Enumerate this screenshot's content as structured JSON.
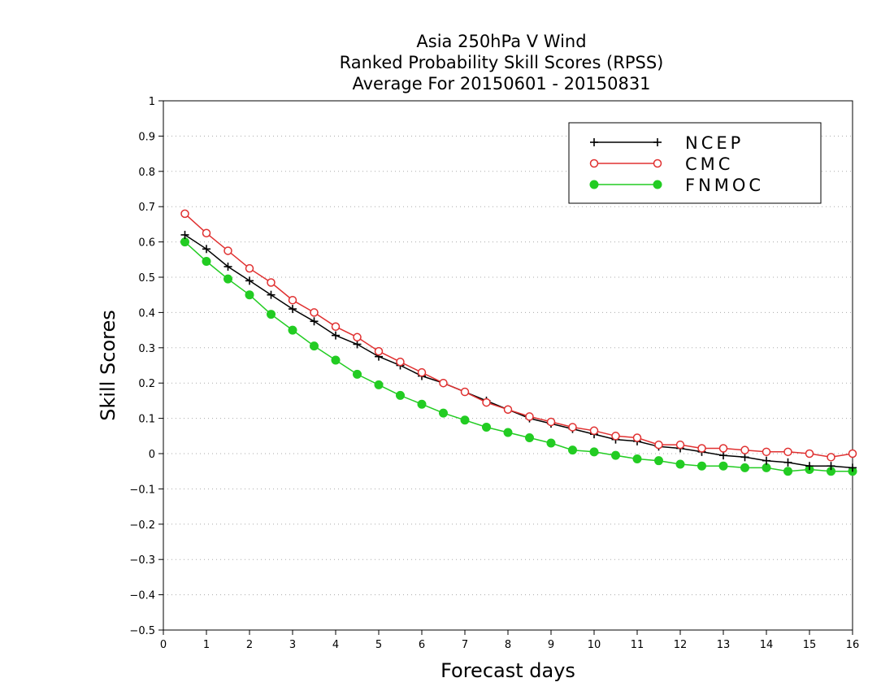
{
  "chart_data": {
    "type": "line",
    "title_lines": [
      "Asia 250hPa V Wind",
      "Ranked Probability Skill Scores (RPSS)",
      "Average For 20150601 - 20150831"
    ],
    "xlabel": "Forecast days",
    "ylabel": "Skill Scores",
    "xlim": [
      0,
      16
    ],
    "ylim": [
      -0.5,
      1
    ],
    "xticks": [
      "0",
      "1",
      "2",
      "3",
      "4",
      "5",
      "6",
      "7",
      "8",
      "9",
      "10",
      "11",
      "12",
      "13",
      "14",
      "15",
      "16"
    ],
    "yticks": [
      "−0.5",
      "−0.4",
      "−0.3",
      "−0.2",
      "−0.1",
      "0",
      "0.1",
      "0.2",
      "0.3",
      "0.4",
      "0.5",
      "0.6",
      "0.7",
      "0.8",
      "0.9",
      "1"
    ],
    "grid": true,
    "legend_position": "top-right",
    "x": [
      0.5,
      1,
      1.5,
      2,
      2.5,
      3,
      3.5,
      4,
      4.5,
      5,
      5.5,
      6,
      6.5,
      7,
      7.5,
      8,
      8.5,
      9,
      9.5,
      10,
      10.5,
      11,
      11.5,
      12,
      12.5,
      13,
      13.5,
      14,
      14.5,
      15,
      15.5,
      16
    ],
    "series": [
      {
        "name": "NCEP",
        "color": "#000000",
        "marker": "plus",
        "values": [
          0.62,
          0.58,
          0.53,
          0.49,
          0.45,
          0.41,
          0.375,
          0.335,
          0.31,
          0.275,
          0.25,
          0.22,
          0.2,
          0.175,
          0.15,
          0.125,
          0.1,
          0.085,
          0.07,
          0.055,
          0.04,
          0.035,
          0.02,
          0.015,
          0.005,
          -0.005,
          -0.01,
          -0.02,
          -0.025,
          -0.035,
          -0.035,
          -0.04
        ]
      },
      {
        "name": "CMC",
        "color": "#e03030",
        "marker": "open-circle",
        "values": [
          0.68,
          0.625,
          0.575,
          0.525,
          0.485,
          0.435,
          0.4,
          0.36,
          0.33,
          0.29,
          0.26,
          0.23,
          0.2,
          0.175,
          0.145,
          0.125,
          0.105,
          0.09,
          0.075,
          0.065,
          0.05,
          0.045,
          0.025,
          0.025,
          0.015,
          0.015,
          0.01,
          0.005,
          0.005,
          0,
          -0.01,
          0
        ]
      },
      {
        "name": "FNMOC",
        "color": "#22cc22",
        "marker": "filled-circle",
        "values": [
          0.6,
          0.545,
          0.495,
          0.45,
          0.395,
          0.35,
          0.305,
          0.265,
          0.225,
          0.195,
          0.165,
          0.14,
          0.115,
          0.095,
          0.075,
          0.06,
          0.045,
          0.03,
          0.01,
          0.005,
          -0.005,
          -0.015,
          -0.02,
          -0.03,
          -0.035,
          -0.035,
          -0.04,
          -0.04,
          -0.05,
          -0.045,
          -0.05,
          -0.05
        ]
      }
    ]
  }
}
